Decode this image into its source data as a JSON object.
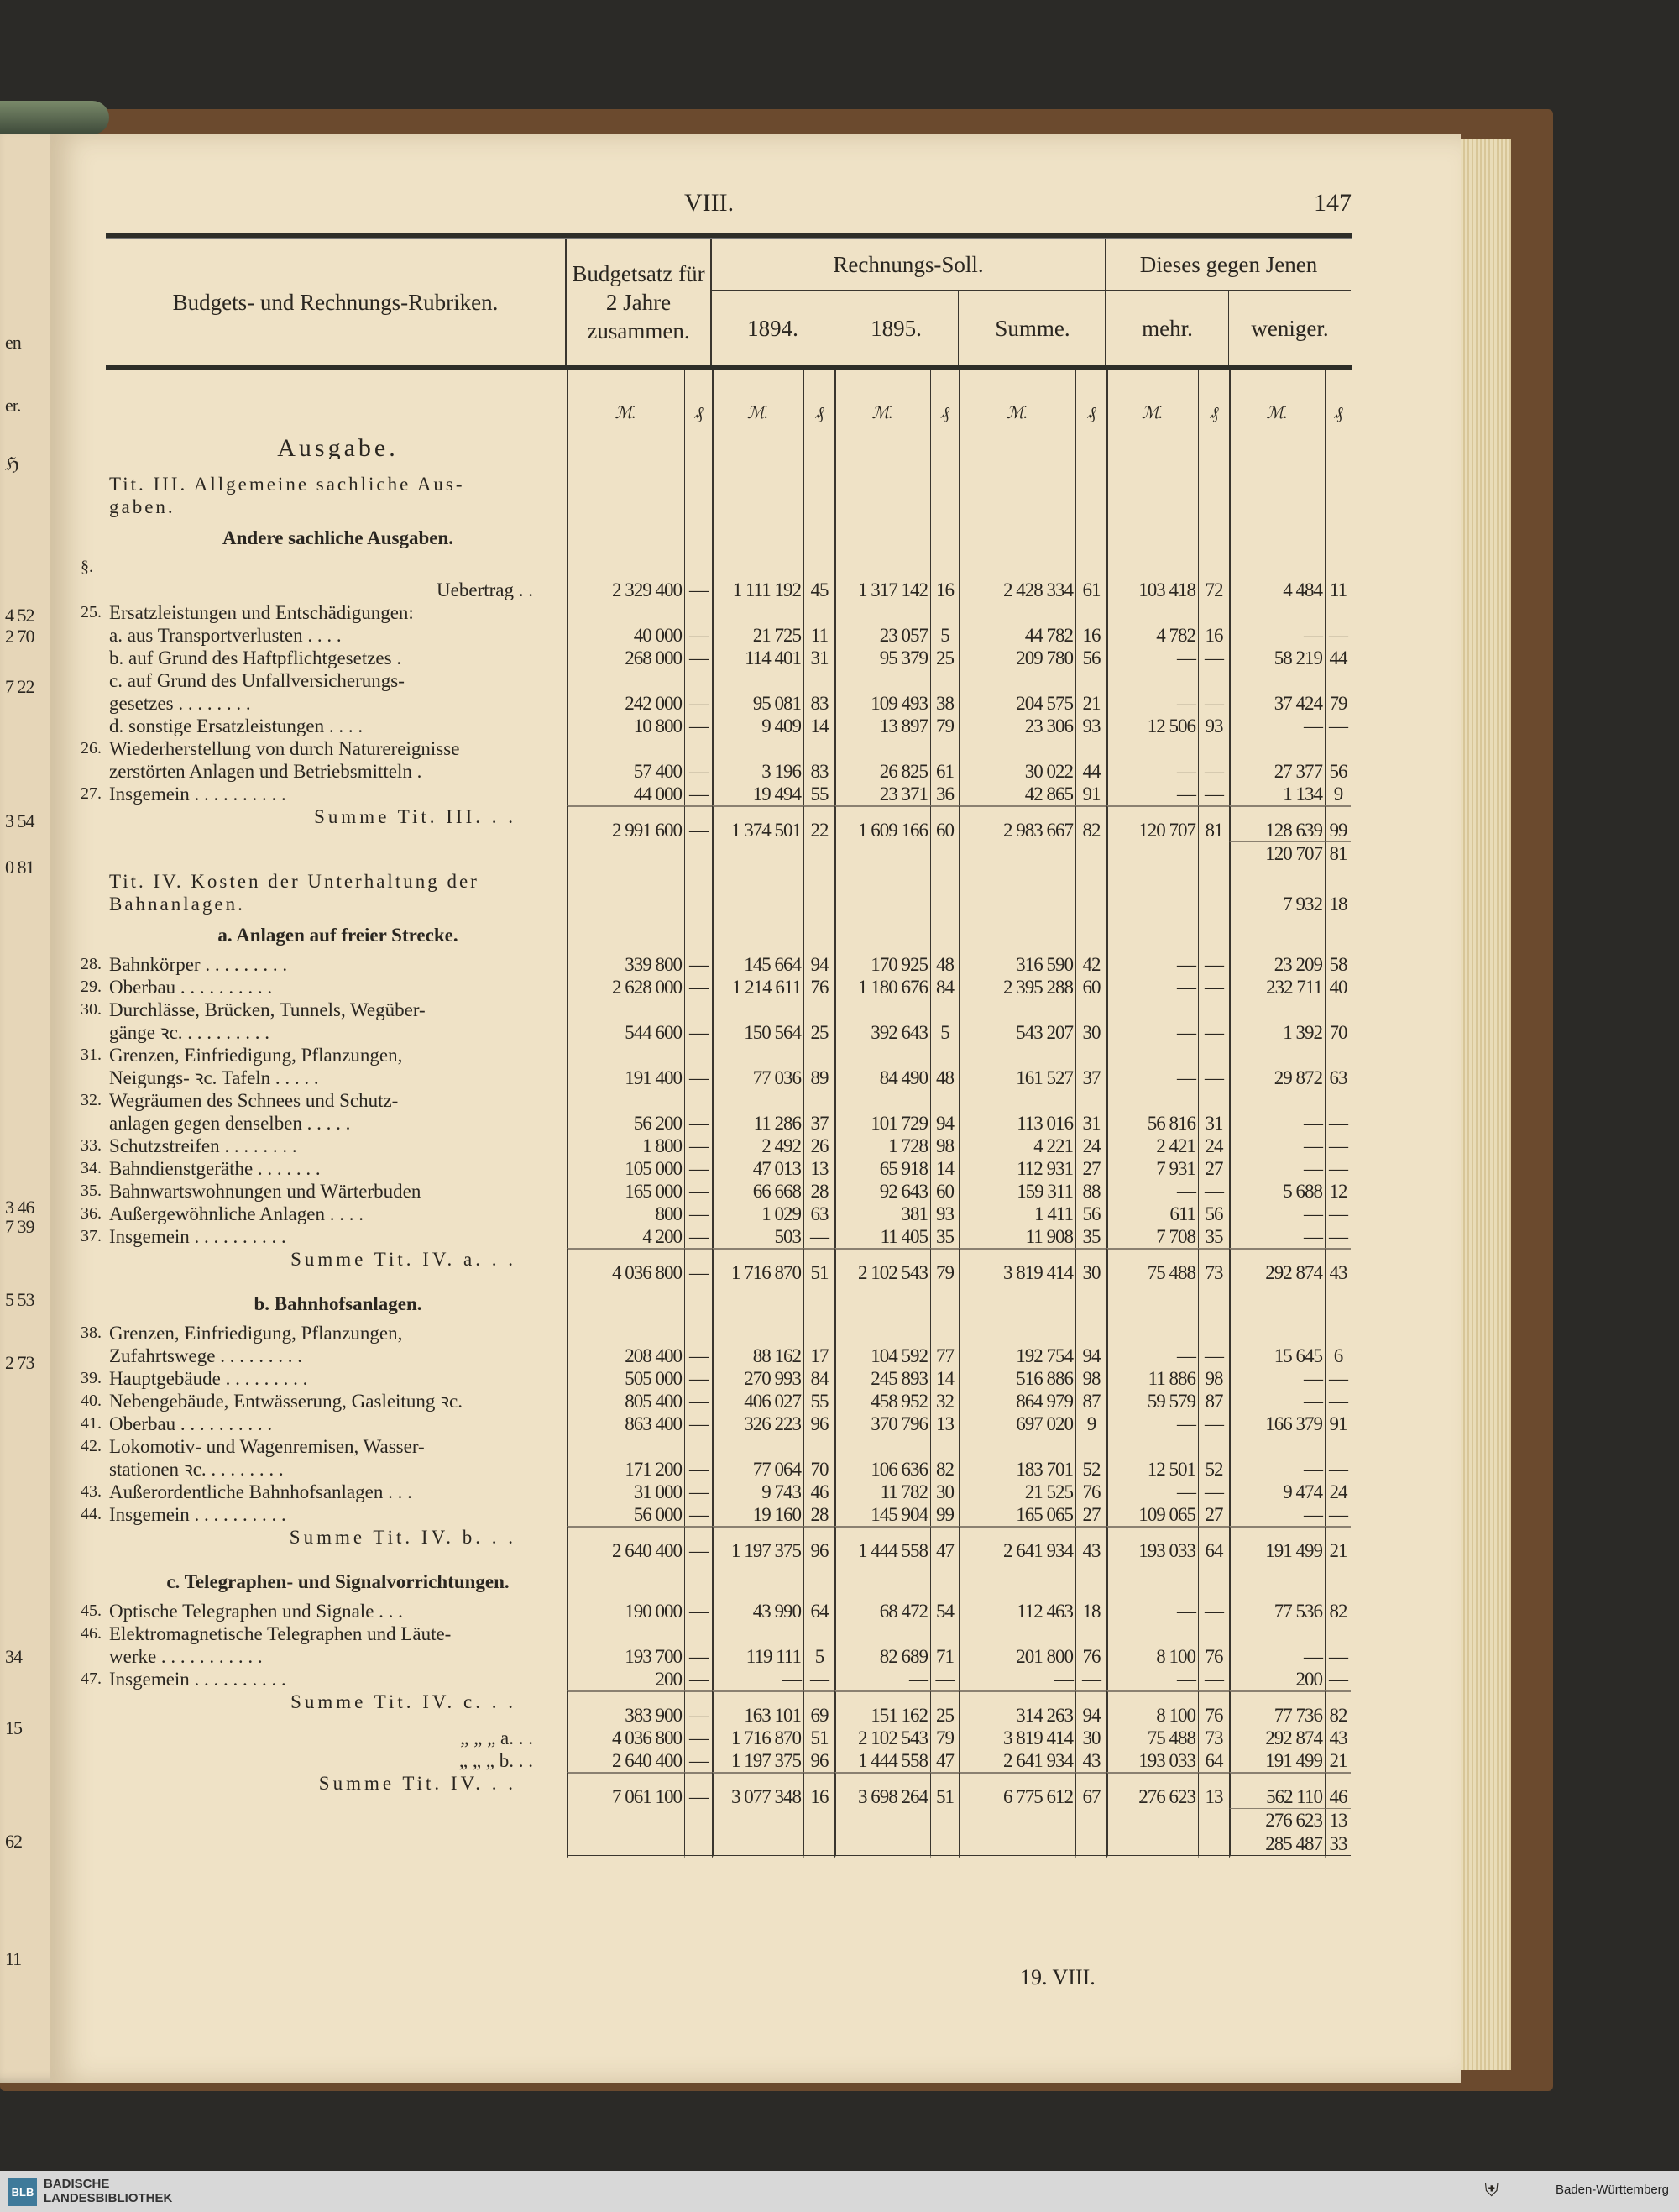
{
  "running_head": {
    "section": "VIII.",
    "page_number": "147"
  },
  "left_page": {
    "fragments": [
      "en",
      "er.",
      "ℌ",
      "4 52",
      "2 70",
      "7 22",
      "3 54",
      "0 81",
      "3 46",
      "7 39",
      "5 53",
      "2 73",
      "34",
      "15",
      "62",
      "11"
    ]
  },
  "header": {
    "rubric": "Budgets- und Rechnungs-Rubriken.",
    "budget": "Budgetsatz für 2 Jahre zusammen.",
    "rechnungs_soll": "Rechnungs-Soll.",
    "year1": "1894.",
    "year2": "1895.",
    "summe": "Summe.",
    "diff": "Dieses gegen Jenen",
    "mehr": "mehr.",
    "weniger": "weniger.",
    "unit_mark": "ℳ.",
    "unit_pf": "₰"
  },
  "rows": [
    {
      "type": "heading",
      "label": [
        "Ausgabe."
      ]
    },
    {
      "type": "title",
      "label": [
        "Tit. III. Allgemeine sachliche Aus-",
        "gaben."
      ]
    },
    {
      "type": "sub",
      "label": [
        "Andere sachliche Ausgaben."
      ]
    },
    {
      "type": "item",
      "num": "§.",
      "label": [
        "",
        "Uebertrag  . ."
      ],
      "right": true,
      "values": [
        "2 329 400",
        "—",
        "1 111 192",
        "45",
        "1 317 142",
        "16",
        "2 428 334",
        "61",
        "103 418",
        "72",
        "4 484",
        "11"
      ]
    },
    {
      "type": "item",
      "num": "25.",
      "label": [
        "Ersatzleistungen und Entschädigungen:"
      ],
      "values": []
    },
    {
      "type": "item",
      "label": [
        "a. aus Transportverlusten  . . . ."
      ],
      "values": [
        "40 000",
        "—",
        "21 725",
        "11",
        "23 057",
        "5",
        "44 782",
        "16",
        "4 782",
        "16",
        "—",
        "—"
      ]
    },
    {
      "type": "item",
      "label": [
        "b. auf Grund des Haftpflichtgesetzes  ."
      ],
      "values": [
        "268 000",
        "—",
        "114 401",
        "31",
        "95 379",
        "25",
        "209 780",
        "56",
        "—",
        "—",
        "58 219",
        "44"
      ]
    },
    {
      "type": "item",
      "label": [
        "c. auf Grund des Unfallversicherungs-",
        "    gesetzes . . . . . . . ."
      ],
      "values": [
        "242 000",
        "—",
        "95 081",
        "83",
        "109 493",
        "38",
        "204 575",
        "21",
        "—",
        "—",
        "37 424",
        "79"
      ]
    },
    {
      "type": "item",
      "label": [
        "d. sonstige Ersatzleistungen . . . ."
      ],
      "values": [
        "10 800",
        "—",
        "9 409",
        "14",
        "13 897",
        "79",
        "23 306",
        "93",
        "12 506",
        "93",
        "—",
        "—"
      ]
    },
    {
      "type": "item",
      "num": "26.",
      "label": [
        "Wiederherstellung von durch Naturereignisse",
        "zerstörten Anlagen und Betriebsmitteln ."
      ],
      "values": [
        "57 400",
        "—",
        "3 196",
        "83",
        "26 825",
        "61",
        "30 022",
        "44",
        "—",
        "—",
        "27 377",
        "56"
      ]
    },
    {
      "type": "item",
      "num": "27.",
      "label": [
        "Insgemein . . . . . . . . . ."
      ],
      "values": [
        "44 000",
        "—",
        "19 494",
        "55",
        "23 371",
        "36",
        "42 865",
        "91",
        "—",
        "—",
        "1 134",
        "9"
      ]
    },
    {
      "type": "sum",
      "label": [
        "Summe Tit. III.  . ."
      ],
      "values": [
        "2 991 600",
        "—",
        "1 374 501",
        "22",
        "1 609 166",
        "60",
        "2 983 667",
        "82",
        "120 707",
        "81",
        "128 639",
        "99"
      ]
    },
    {
      "type": "extra",
      "values": [
        "",
        "",
        "",
        "",
        "",
        "",
        "",
        "",
        "",
        "",
        "120 707",
        "81"
      ]
    },
    {
      "type": "title",
      "label": [
        "Tit. IV. Kosten der Unterhaltung der",
        "          Bahnanlagen."
      ],
      "values": [
        "",
        "",
        "",
        "",
        "",
        "",
        "",
        "",
        "",
        "",
        "7 932",
        "18"
      ]
    },
    {
      "type": "sub",
      "label": [
        "a. Anlagen auf freier Strecke."
      ]
    },
    {
      "type": "item",
      "num": "28.",
      "label": [
        "Bahnkörper . . . . . . . . ."
      ],
      "values": [
        "339 800",
        "—",
        "145 664",
        "94",
        "170 925",
        "48",
        "316 590",
        "42",
        "—",
        "—",
        "23 209",
        "58"
      ]
    },
    {
      "type": "item",
      "num": "29.",
      "label": [
        "Oberbau . . . . . . . . . ."
      ],
      "values": [
        "2 628 000",
        "—",
        "1 214 611",
        "76",
        "1 180 676",
        "84",
        "2 395 288",
        "60",
        "—",
        "—",
        "232 711",
        "40"
      ]
    },
    {
      "type": "item",
      "num": "30.",
      "label": [
        "Durchlässe, Brücken, Tunnels, Wegüber-",
        "gänge ꝛc. . . . . . . . . ."
      ],
      "values": [
        "544 600",
        "—",
        "150 564",
        "25",
        "392 643",
        "5",
        "543 207",
        "30",
        "—",
        "—",
        "1 392",
        "70"
      ]
    },
    {
      "type": "item",
      "num": "31.",
      "label": [
        "Grenzen, Einfriedigung, Pflanzungen,",
        "Neigungs- ꝛc. Tafeln . . . . ."
      ],
      "values": [
        "191 400",
        "—",
        "77 036",
        "89",
        "84 490",
        "48",
        "161 527",
        "37",
        "—",
        "—",
        "29 872",
        "63"
      ]
    },
    {
      "type": "item",
      "num": "32.",
      "label": [
        "Wegräumen des Schnees und Schutz-",
        "anlagen gegen denselben . . . . ."
      ],
      "values": [
        "56 200",
        "—",
        "11 286",
        "37",
        "101 729",
        "94",
        "113 016",
        "31",
        "56 816",
        "31",
        "—",
        "—"
      ]
    },
    {
      "type": "item",
      "num": "33.",
      "label": [
        "Schutzstreifen . . . . . . . ."
      ],
      "values": [
        "1 800",
        "—",
        "2 492",
        "26",
        "1 728",
        "98",
        "4 221",
        "24",
        "2 421",
        "24",
        "—",
        "—"
      ]
    },
    {
      "type": "item",
      "num": "34.",
      "label": [
        "Bahndienstgeräthe . . . . . . ."
      ],
      "values": [
        "105 000",
        "—",
        "47 013",
        "13",
        "65 918",
        "14",
        "112 931",
        "27",
        "7 931",
        "27",
        "—",
        "—"
      ]
    },
    {
      "type": "item",
      "num": "35.",
      "label": [
        "Bahnwartswohnungen und Wärterbuden"
      ],
      "values": [
        "165 000",
        "—",
        "66 668",
        "28",
        "92 643",
        "60",
        "159 311",
        "88",
        "—",
        "—",
        "5 688",
        "12"
      ]
    },
    {
      "type": "item",
      "num": "36.",
      "label": [
        "Außergewöhnliche Anlagen . . . ."
      ],
      "values": [
        "800",
        "—",
        "1 029",
        "63",
        "381",
        "93",
        "1 411",
        "56",
        "611",
        "56",
        "—",
        "—"
      ]
    },
    {
      "type": "item",
      "num": "37.",
      "label": [
        "Insgemein . . . . . . . . . ."
      ],
      "values": [
        "4 200",
        "—",
        "503",
        "—",
        "11 405",
        "35",
        "11 908",
        "35",
        "7 708",
        "35",
        "—",
        "—"
      ]
    },
    {
      "type": "sum",
      "label": [
        "Summe Tit. IV. a.  . ."
      ],
      "values": [
        "4 036 800",
        "—",
        "1 716 870",
        "51",
        "2 102 543",
        "79",
        "3 819 414",
        "30",
        "75 488",
        "73",
        "292 874",
        "43"
      ]
    },
    {
      "type": "sub",
      "label": [
        "b. Bahnhofsanlagen."
      ]
    },
    {
      "type": "item",
      "num": "38.",
      "label": [
        "Grenzen, Einfriedigung, Pflanzungen,",
        "Zufahrtswege . . . . . . . . ."
      ],
      "values": [
        "208 400",
        "—",
        "88 162",
        "17",
        "104 592",
        "77",
        "192 754",
        "94",
        "—",
        "—",
        "15 645",
        "6"
      ]
    },
    {
      "type": "item",
      "num": "39.",
      "label": [
        "Hauptgebäude . . . . . . . . ."
      ],
      "values": [
        "505 000",
        "—",
        "270 993",
        "84",
        "245 893",
        "14",
        "516 886",
        "98",
        "11 886",
        "98",
        "—",
        "—"
      ]
    },
    {
      "type": "item",
      "num": "40.",
      "label": [
        "Nebengebäude, Entwässerung, Gasleitung ꝛc."
      ],
      "values": [
        "805 400",
        "—",
        "406 027",
        "55",
        "458 952",
        "32",
        "864 979",
        "87",
        "59 579",
        "87",
        "—",
        "—"
      ]
    },
    {
      "type": "item",
      "num": "41.",
      "label": [
        "Oberbau . . . . . . . . . ."
      ],
      "values": [
        "863 400",
        "—",
        "326 223",
        "96",
        "370 796",
        "13",
        "697 020",
        "9",
        "—",
        "—",
        "166 379",
        "91"
      ]
    },
    {
      "type": "item",
      "num": "42.",
      "label": [
        "Lokomotiv- und Wagenremisen, Wasser-",
        "stationen ꝛc. . . . . . . . ."
      ],
      "values": [
        "171 200",
        "—",
        "77 064",
        "70",
        "106 636",
        "82",
        "183 701",
        "52",
        "12 501",
        "52",
        "—",
        "—"
      ]
    },
    {
      "type": "item",
      "num": "43.",
      "label": [
        "Außerordentliche Bahnhofsanlagen . . ."
      ],
      "values": [
        "31 000",
        "—",
        "9 743",
        "46",
        "11 782",
        "30",
        "21 525",
        "76",
        "—",
        "—",
        "9 474",
        "24"
      ]
    },
    {
      "type": "item",
      "num": "44.",
      "label": [
        "Insgemein . . . . . . . . . ."
      ],
      "values": [
        "56 000",
        "—",
        "19 160",
        "28",
        "145 904",
        "99",
        "165 065",
        "27",
        "109 065",
        "27",
        "—",
        "—"
      ]
    },
    {
      "type": "sum",
      "label": [
        "Summe Tit. IV. b.  . ."
      ],
      "values": [
        "2 640 400",
        "—",
        "1 197 375",
        "96",
        "1 444 558",
        "47",
        "2 641 934",
        "43",
        "193 033",
        "64",
        "191 499",
        "21"
      ]
    },
    {
      "type": "sub",
      "label": [
        "c. Telegraphen- und Signalvorrichtungen."
      ]
    },
    {
      "type": "item",
      "num": "45.",
      "label": [
        "Optische Telegraphen und Signale . . ."
      ],
      "values": [
        "190 000",
        "—",
        "43 990",
        "64",
        "68 472",
        "54",
        "112 463",
        "18",
        "—",
        "—",
        "77 536",
        "82"
      ]
    },
    {
      "type": "item",
      "num": "46.",
      "label": [
        "Elektromagnetische Telegraphen und Läute-",
        "werke . . . . . . . . . . ."
      ],
      "values": [
        "193 700",
        "—",
        "119 111",
        "5",
        "82 689",
        "71",
        "201 800",
        "76",
        "8 100",
        "76",
        "—",
        "—"
      ]
    },
    {
      "type": "item",
      "num": "47.",
      "label": [
        "Insgemein . . . . . . . . . ."
      ],
      "values": [
        "200",
        "—",
        "—",
        "—",
        "—",
        "—",
        "—",
        "—",
        "—",
        "—",
        "200",
        "—"
      ]
    },
    {
      "type": "sum",
      "label": [
        "Summe Tit. IV. c.  . ."
      ],
      "values": [
        "383 900",
        "—",
        "163 101",
        "69",
        "151 162",
        "25",
        "314 263",
        "94",
        "8 100",
        "76",
        "77 736",
        "82"
      ]
    },
    {
      "type": "item",
      "right": true,
      "label": [
        "„   „   „  a.  . ."
      ],
      "values": [
        "4 036 800",
        "—",
        "1 716 870",
        "51",
        "2 102 543",
        "79",
        "3 819 414",
        "30",
        "75 488",
        "73",
        "292 874",
        "43"
      ]
    },
    {
      "type": "item",
      "right": true,
      "label": [
        "„   „   „  b.  . ."
      ],
      "values": [
        "2 640 400",
        "—",
        "1 197 375",
        "96",
        "1 444 558",
        "47",
        "2 641 934",
        "43",
        "193 033",
        "64",
        "191 499",
        "21"
      ]
    },
    {
      "type": "sum",
      "label": [
        "Summe Tit. IV.  . ."
      ],
      "values": [
        "7 061 100",
        "—",
        "3 077 348",
        "16",
        "3 698 264",
        "51",
        "6 775 612",
        "67",
        "276 623",
        "13",
        "562 110",
        "46"
      ]
    },
    {
      "type": "extra",
      "values": [
        "",
        "",
        "",
        "",
        "",
        "",
        "",
        "",
        "",
        "",
        "276 623",
        "13"
      ]
    },
    {
      "type": "extra",
      "final": true,
      "values": [
        "",
        "",
        "",
        "",
        "",
        "",
        "",
        "",
        "",
        "",
        "285 487",
        "33"
      ]
    }
  ],
  "footer_signature": "19. VIII.",
  "library_bar": {
    "logo": "BLB",
    "library": "BADISCHE\nLANDESBIBLIOTHEK",
    "state": "Baden-Württemberg"
  }
}
